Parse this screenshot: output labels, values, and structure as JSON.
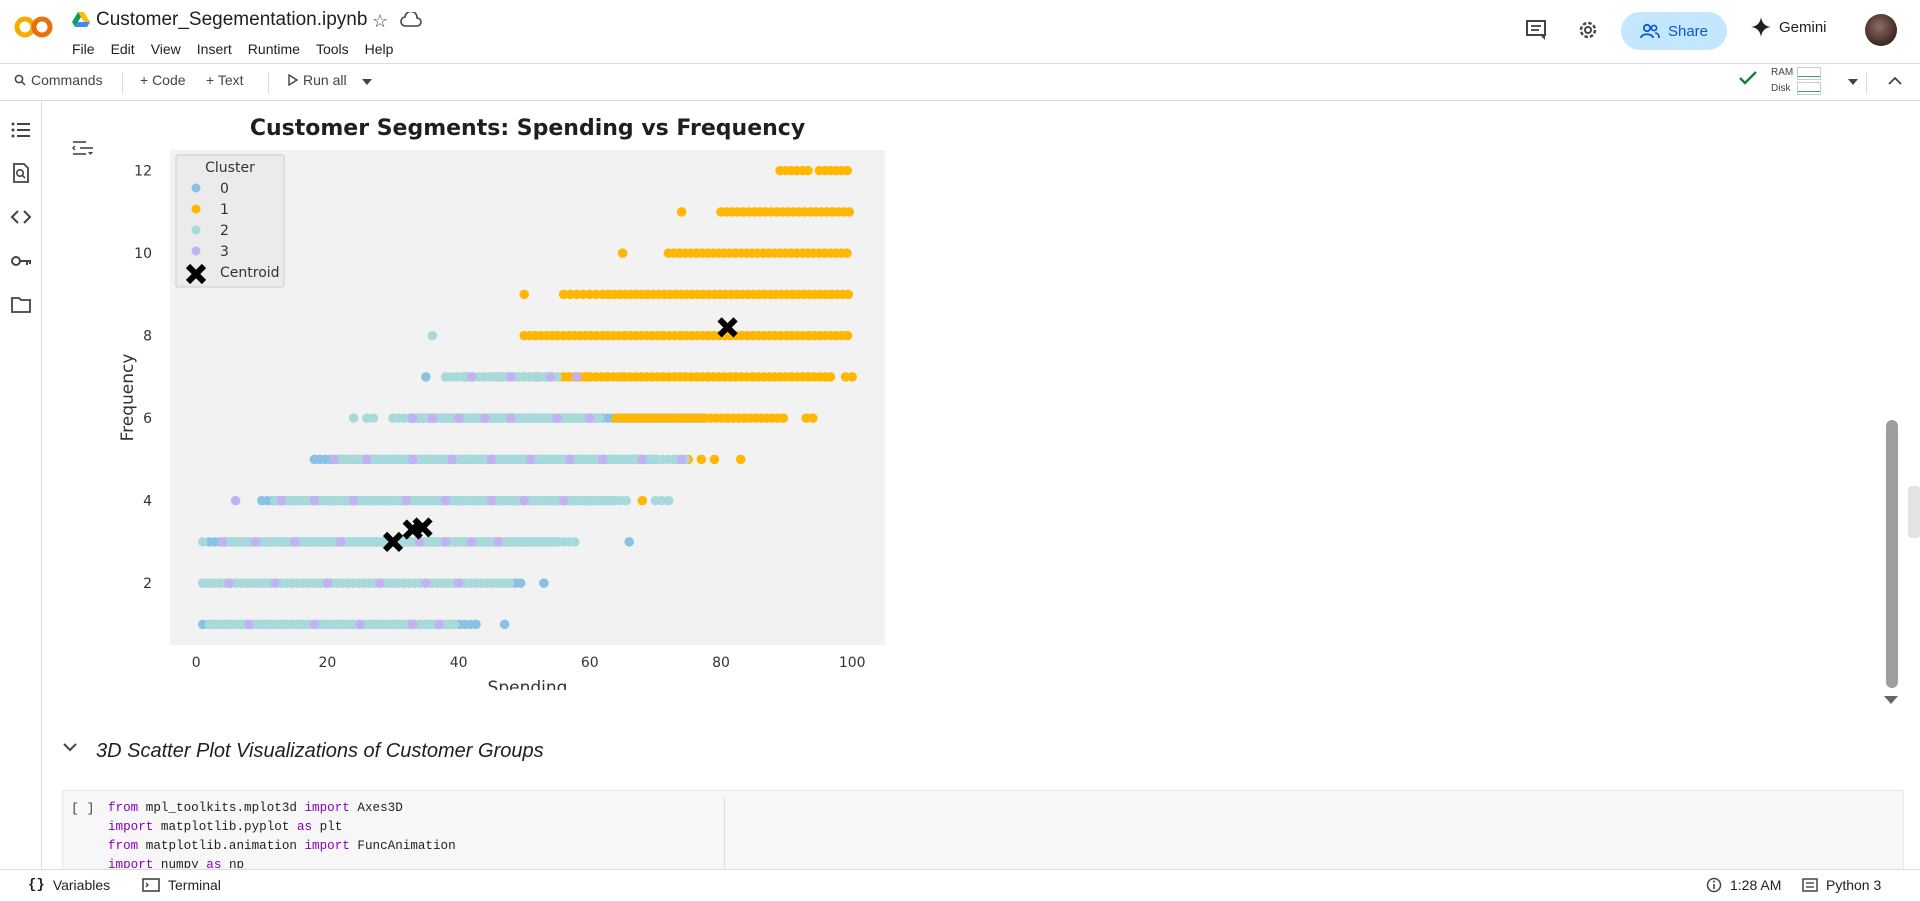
{
  "header": {
    "title": "Customer_Segementation.ipynb",
    "menu": [
      "File",
      "Edit",
      "View",
      "Insert",
      "Runtime",
      "Tools",
      "Help"
    ],
    "share_label": "Share",
    "gemini_label": "Gemini"
  },
  "toolbar": {
    "commands_label": "Commands",
    "code_label": "+ Code",
    "text_label": "+ Text",
    "run_all_label": "Run all",
    "ram_label": "RAM",
    "disk_label": "Disk"
  },
  "left_rail": {
    "icons": [
      "table-of-contents-icon",
      "find-icon",
      "code-snippets-icon",
      "secrets-key-icon",
      "files-folder-icon"
    ]
  },
  "section": {
    "title": "3D Scatter Plot Visualizations of Customer Groups"
  },
  "code_cell": {
    "run_indicator": "[ ]",
    "lines": [
      {
        "kw1": "from",
        "mid": " mpl_toolkits.mplot3d ",
        "kw2": "import",
        "rest": " Axes3D"
      },
      {
        "kw1": "import",
        "mid": " matplotlib.pyplot ",
        "kw2": "as",
        "rest": " plt"
      },
      {
        "kw1": "from",
        "mid": " matplotlib.animation ",
        "kw2": "import",
        "rest": " FuncAnimation"
      },
      {
        "kw1": "import",
        "mid": " numpy ",
        "kw2": "as",
        "rest": " np"
      }
    ]
  },
  "statusbar": {
    "variables_label": "Variables",
    "terminal_label": "Terminal",
    "time": "1:28 AM",
    "kernel": "Python 3"
  },
  "colors": {
    "cluster_0": "#89c2e2",
    "cluster_1": "#ffb703",
    "cluster_2": "#a8dadc",
    "cluster_3": "#c3b1f5",
    "centroid": "#000000",
    "plot_bg": "#f2f2f2",
    "share_bg": "#c2e7ff"
  },
  "chart_data": {
    "type": "scatter",
    "title": "Customer Segments: Spending vs Frequency",
    "xlabel": "Spending",
    "ylabel": "Frequency",
    "xlim": [
      -4,
      105
    ],
    "ylim": [
      0.5,
      12.5
    ],
    "xticks": [
      0,
      20,
      40,
      60,
      80,
      100
    ],
    "yticks": [
      2,
      4,
      6,
      8,
      10,
      12
    ],
    "grid": false,
    "legend": {
      "title": "Cluster",
      "position": "top-left",
      "entries": [
        "0",
        "1",
        "2",
        "3",
        "Centroid"
      ]
    },
    "series": [
      {
        "name": "0",
        "color": "#89c2e2",
        "segments": [
          {
            "y": 1,
            "x_start": 1,
            "x_end": 43
          },
          {
            "y": 1,
            "x": [
              47
            ]
          },
          {
            "y": 2,
            "x_start": 1,
            "x_end": 50
          },
          {
            "y": 2,
            "x": [
              53
            ]
          },
          {
            "y": 3,
            "x_start": 2,
            "x_end": 55
          },
          {
            "y": 3,
            "x": [
              66
            ]
          },
          {
            "y": 4,
            "x_start": 10,
            "x_end": 64
          },
          {
            "y": 5,
            "x_start": 18,
            "x_end": 70
          },
          {
            "y": 6,
            "x_start": 33,
            "x_end": 78
          },
          {
            "y": 7,
            "x": [
              35,
              41,
              46,
              52,
              60,
              65,
              78
            ]
          }
        ]
      },
      {
        "name": "1",
        "color": "#ffb703",
        "segments": [
          {
            "y": 4,
            "x": [
              68
            ]
          },
          {
            "y": 5,
            "x": [
              67,
              73,
              75,
              77,
              79,
              83
            ]
          },
          {
            "y": 6,
            "x_start": 64,
            "x_end": 90
          },
          {
            "y": 6,
            "x": [
              93,
              94
            ]
          },
          {
            "y": 7,
            "x_start": 44,
            "x_end": 97
          },
          {
            "y": 7,
            "x": [
              99,
              100
            ]
          },
          {
            "y": 8,
            "x_start": 50,
            "x_end": 100
          },
          {
            "y": 9,
            "x": [
              50,
              56,
              57,
              58,
              59,
              60,
              61
            ]
          },
          {
            "y": 9,
            "x_start": 62,
            "x_end": 100
          },
          {
            "y": 10,
            "x": [
              65
            ]
          },
          {
            "y": 10,
            "x_start": 72,
            "x_end": 100
          },
          {
            "y": 11,
            "x": [
              74
            ]
          },
          {
            "y": 11,
            "x_start": 80,
            "x_end": 100
          },
          {
            "y": 12,
            "x_start": 89,
            "x_end": 94
          },
          {
            "y": 12,
            "x_start": 95,
            "x_end": 100
          }
        ]
      },
      {
        "name": "2",
        "color": "#a8dadc",
        "segments": [
          {
            "y": 1,
            "x_start": 2,
            "x_end": 40
          },
          {
            "y": 2,
            "x_start": 1,
            "x_end": 48
          },
          {
            "y": 3,
            "x": [
              1
            ]
          },
          {
            "y": 3,
            "x_start": 5,
            "x_end": 58
          },
          {
            "y": 4,
            "x_start": 12,
            "x_end": 66
          },
          {
            "y": 4,
            "x": [
              70,
              71,
              72
            ]
          },
          {
            "y": 5,
            "x_start": 21,
            "x_end": 75
          },
          {
            "y": 6,
            "x": [
              24,
              26,
              27
            ]
          },
          {
            "y": 6,
            "x_start": 30,
            "x_end": 62
          },
          {
            "y": 7,
            "x_start": 38,
            "x_end": 55
          },
          {
            "y": 8,
            "x": [
              36
            ]
          }
        ]
      },
      {
        "name": "3",
        "color": "#c3b1f5",
        "segments": [
          {
            "y": 1,
            "x": [
              8,
              18,
              25,
              33,
              37
            ]
          },
          {
            "y": 2,
            "x": [
              5,
              12,
              20,
              28,
              35,
              40
            ]
          },
          {
            "y": 3,
            "x": [
              4,
              9,
              15,
              22,
              30,
              34,
              38,
              42,
              46
            ]
          },
          {
            "y": 4,
            "x": [
              6,
              13,
              18,
              24,
              32,
              38,
              45,
              50,
              56
            ]
          },
          {
            "y": 5,
            "x": [
              21,
              26,
              33,
              39,
              45,
              51,
              57,
              62,
              68,
              74
            ]
          },
          {
            "y": 6,
            "x": [
              33,
              36,
              40,
              44,
              48,
              55,
              60
            ]
          },
          {
            "y": 7,
            "x": [
              42,
              48,
              54,
              58
            ]
          }
        ]
      }
    ],
    "centroids": [
      {
        "x": 30,
        "y": 3.0
      },
      {
        "x": 33,
        "y": 3.3
      },
      {
        "x": 34.5,
        "y": 3.35
      },
      {
        "x": 81,
        "y": 8.2
      }
    ]
  }
}
